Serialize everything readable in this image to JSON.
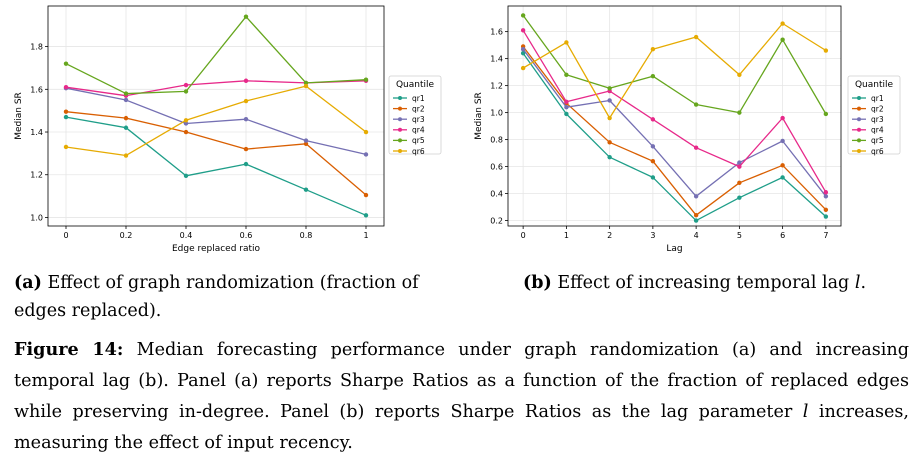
{
  "chart_data": [
    {
      "type": "line",
      "xlabel": "Edge replaced ratio",
      "ylabel": "Median SR",
      "x": [
        0,
        0.2,
        0.4,
        0.6,
        0.8,
        1
      ],
      "x_tick_labels": [
        "0",
        "0.2",
        "0.4",
        "0.6",
        "0.8",
        "1"
      ],
      "ylim": [
        0.96,
        1.99
      ],
      "yticks": [
        1.0,
        1.2,
        1.4,
        1.6,
        1.8
      ],
      "y_tick_labels": [
        "1.0",
        "1.2",
        "1.4",
        "1.6",
        "1.8"
      ],
      "legend_title": "Quantile",
      "series": [
        {
          "name": "qr1",
          "color": "#1f9e89",
          "values": [
            1.47,
            1.42,
            1.195,
            1.25,
            1.13,
            1.01
          ]
        },
        {
          "name": "qr2",
          "color": "#d95f02",
          "values": [
            1.495,
            1.465,
            1.4,
            1.32,
            1.345,
            1.105
          ]
        },
        {
          "name": "qr3",
          "color": "#7570b3",
          "values": [
            1.605,
            1.55,
            1.44,
            1.46,
            1.36,
            1.295
          ]
        },
        {
          "name": "qr4",
          "color": "#e7298a",
          "values": [
            1.61,
            1.57,
            1.62,
            1.64,
            1.63,
            1.64
          ]
        },
        {
          "name": "qr5",
          "color": "#66a61e",
          "values": [
            1.72,
            1.58,
            1.59,
            1.94,
            1.63,
            1.645
          ]
        },
        {
          "name": "qr6",
          "color": "#e6ab02",
          "values": [
            1.33,
            1.29,
            1.455,
            1.545,
            1.615,
            1.4
          ]
        }
      ]
    },
    {
      "type": "line",
      "xlabel": "Lag",
      "ylabel": "Median SR",
      "x": [
        0,
        1,
        2,
        3,
        4,
        5,
        6,
        7
      ],
      "x_tick_labels": [
        "0",
        "1",
        "2",
        "3",
        "4",
        "5",
        "6",
        "7"
      ],
      "ylim": [
        0.16,
        1.79
      ],
      "yticks": [
        0.2,
        0.4,
        0.6,
        0.8,
        1.0,
        1.2,
        1.4,
        1.6
      ],
      "y_tick_labels": [
        "0.2",
        "0.4",
        "0.6",
        "0.8",
        "1.0",
        "1.2",
        "1.4",
        "1.6"
      ],
      "legend_title": "Quantile",
      "series": [
        {
          "name": "qr1",
          "color": "#1f9e89",
          "values": [
            1.44,
            0.99,
            0.67,
            0.52,
            0.2,
            0.37,
            0.52,
            0.23
          ]
        },
        {
          "name": "qr2",
          "color": "#d95f02",
          "values": [
            1.49,
            1.07,
            0.78,
            0.64,
            0.24,
            0.48,
            0.61,
            0.28
          ]
        },
        {
          "name": "qr3",
          "color": "#7570b3",
          "values": [
            1.47,
            1.04,
            1.09,
            0.75,
            0.38,
            0.63,
            0.79,
            0.38
          ]
        },
        {
          "name": "qr4",
          "color": "#e7298a",
          "values": [
            1.61,
            1.08,
            1.16,
            0.95,
            0.74,
            0.6,
            0.96,
            0.41
          ]
        },
        {
          "name": "qr5",
          "color": "#66a61e",
          "values": [
            1.72,
            1.28,
            1.18,
            1.27,
            1.06,
            1.0,
            1.54,
            0.99
          ]
        },
        {
          "name": "qr6",
          "color": "#e6ab02",
          "values": [
            1.33,
            1.52,
            0.96,
            1.47,
            1.56,
            1.28,
            1.66,
            1.46
          ]
        }
      ]
    }
  ],
  "captions": {
    "a_label": "(a)",
    "a_text": "Effect of graph randomization (fraction of edges replaced).",
    "b_label": "(b)",
    "b_text_pre": "Effect of increasing temporal lag",
    "b_var": "l",
    "b_text_post": "."
  },
  "figure_caption": {
    "label": "Figure 14:",
    "text_1": "Median forecasting performance under graph randomization (a) and increasing temporal lag (b). Panel (a) reports Sharpe Ratios as a function of the fraction of replaced edges while preserving in-degree. Panel (b) reports Sharpe Ratios as the lag parameter",
    "var": "l",
    "text_2": "increases, measuring the effect of input recency."
  }
}
